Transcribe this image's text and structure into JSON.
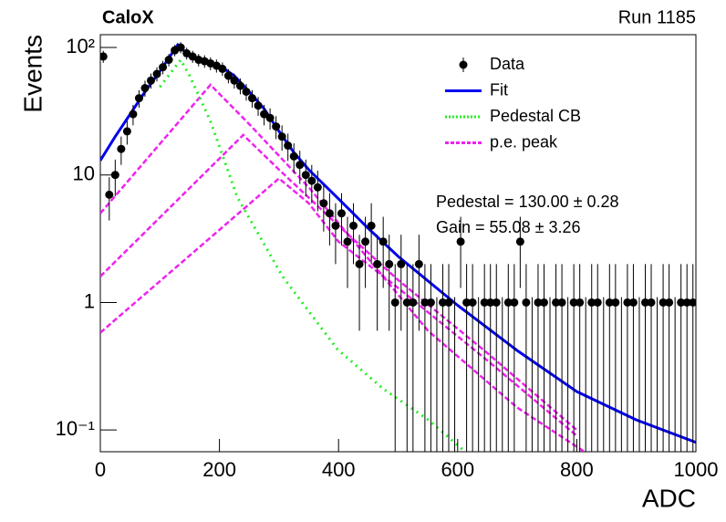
{
  "chart_data": {
    "type": "scatter",
    "label_left": "CaloX",
    "label_right": "Run 1185",
    "xlabel": "ADC",
    "ylabel": "Events",
    "xlim": [
      0,
      1000
    ],
    "xticks": [
      0,
      200,
      400,
      600,
      800,
      1000
    ],
    "ylim": [
      0.0675,
      126
    ],
    "log_y": true,
    "yticks": [
      {
        "value": 100,
        "label": "10²"
      },
      10,
      1,
      {
        "value": 0.1,
        "label": "10⁻¹"
      }
    ],
    "data": {
      "name": "Data",
      "color": "#000000",
      "x": [
        5,
        15,
        25,
        35,
        45,
        55,
        65,
        75,
        85,
        95,
        105,
        115,
        125,
        135,
        145,
        155,
        165,
        175,
        185,
        195,
        205,
        215,
        225,
        235,
        245,
        255,
        265,
        275,
        285,
        295,
        305,
        315,
        325,
        335,
        345,
        355,
        365,
        375,
        385,
        395,
        405,
        415,
        425,
        435,
        445,
        455,
        465,
        475,
        485,
        495,
        505,
        515,
        525,
        535,
        545,
        555,
        565,
        575,
        585,
        595,
        605,
        615,
        625,
        635,
        645,
        655,
        665,
        675,
        685,
        695,
        705,
        715,
        725,
        735,
        745,
        755,
        765,
        775,
        785,
        795,
        805,
        815,
        825,
        835,
        845,
        855,
        865,
        875,
        885,
        895,
        905,
        915,
        925,
        935,
        945,
        955,
        965,
        975,
        985,
        995
      ],
      "values": [
        85,
        7,
        10,
        16,
        22,
        30,
        40,
        48,
        55,
        62,
        70,
        80,
        95,
        100,
        90,
        85,
        80,
        78,
        75,
        72,
        68,
        60,
        55,
        50,
        45,
        40,
        35,
        30,
        28,
        24,
        20,
        17,
        14,
        12,
        10,
        9,
        8,
        6,
        5,
        4,
        5,
        3,
        4,
        2,
        3,
        4,
        2,
        3,
        2,
        1,
        2,
        1,
        1,
        2,
        1,
        1,
        0,
        1,
        1,
        0,
        3,
        1,
        1,
        0,
        1,
        1,
        1,
        0,
        1,
        1,
        3,
        1,
        0,
        1,
        1,
        0,
        1,
        1,
        0,
        1,
        1,
        0,
        1,
        1,
        0,
        1,
        1,
        0,
        1,
        1,
        0,
        1,
        1,
        0,
        1,
        1,
        0,
        1,
        1,
        1
      ],
      "errors": [
        9.2,
        2.6,
        3.2,
        4,
        4.7,
        5.5,
        6.3,
        6.9,
        7.4,
        7.9,
        8.4,
        8.9,
        9.7,
        10,
        9.5,
        9.2,
        8.9,
        8.8,
        8.7,
        8.5,
        8.2,
        7.7,
        7.4,
        7.1,
        6.7,
        6.3,
        5.9,
        5.5,
        5.3,
        4.9,
        4.5,
        4.1,
        3.7,
        3.5,
        3.2,
        3,
        2.8,
        2.4,
        2.2,
        2,
        2.2,
        1.7,
        2,
        1.4,
        1.7,
        2,
        1.4,
        1.7,
        1.4,
        1,
        1.4,
        1,
        1,
        1.4,
        1,
        1,
        1.1,
        1,
        1,
        1.1,
        1.7,
        1,
        1,
        1.1,
        1,
        1,
        1,
        1.1,
        1,
        1,
        1.7,
        1,
        1.1,
        1,
        1,
        1.1,
        1,
        1,
        1.1,
        1,
        1,
        1.1,
        1,
        1,
        1.1,
        1,
        1,
        1.1,
        1,
        1,
        1.1,
        1,
        1,
        1.1,
        1,
        1,
        1.1,
        1,
        1,
        1
      ]
    },
    "fit": {
      "name": "Fit",
      "color": "#0000ee",
      "x": [
        0,
        25,
        50,
        75,
        100,
        130,
        150,
        175,
        200,
        225,
        250,
        275,
        300,
        325,
        350,
        400,
        450,
        500,
        600,
        700,
        800,
        900,
        1000
      ],
      "values": [
        13,
        20,
        30,
        45,
        65,
        105,
        85,
        80,
        72,
        60,
        45,
        33,
        22,
        15,
        11,
        6.5,
        3.8,
        2.3,
        0.95,
        0.42,
        0.2,
        0.12,
        0.08
      ]
    },
    "pedestal": {
      "name": "Pedestal CB",
      "color": "#22ee22",
      "x": [
        100,
        120,
        135,
        150,
        184,
        230,
        306,
        398,
        475,
        551,
        612
      ],
      "values": [
        49,
        65,
        80,
        60,
        27,
        6.7,
        1.6,
        0.43,
        0.21,
        0.12,
        0.068
      ]
    },
    "pe_peaks": {
      "name": "p.e. peak",
      "color": "#ee22ee",
      "curves": [
        {
          "x": [
            0,
            185,
            250,
            350,
            450,
            550,
            700,
            812
          ],
          "values": [
            5,
            51,
            25,
            8,
            2.2,
            0.6,
            0.15,
            0.068
          ]
        },
        {
          "x": [
            0,
            240,
            300,
            400,
            500,
            650,
            800
          ],
          "values": [
            1.6,
            20.6,
            11,
            4,
            1.5,
            0.4,
            0.1
          ]
        },
        {
          "x": [
            0,
            300,
            350,
            400,
            500,
            650,
            800
          ],
          "values": [
            0.58,
            9.4,
            6,
            3,
            1.3,
            0.35,
            0.09
          ]
        }
      ]
    },
    "stats": [
      "Pedestal = 130.00 ± 0.28",
      "Gain = 55.08 ± 3.26"
    ]
  }
}
